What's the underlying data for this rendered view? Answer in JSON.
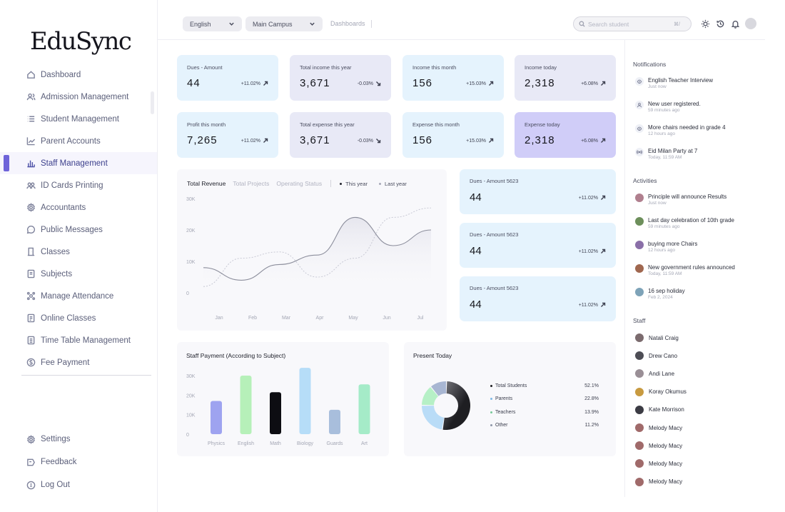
{
  "app": {
    "logo": "EduSync"
  },
  "sidebar": {
    "items": [
      {
        "label": "Dashboard",
        "icon": "home-icon"
      },
      {
        "label": "Admission Management",
        "icon": "users-icon"
      },
      {
        "label": "Student Management",
        "icon": "list-icon"
      },
      {
        "label": "Parent Accounts",
        "icon": "trend-icon"
      },
      {
        "label": "Staff Management",
        "icon": "bar-chart-icon",
        "active": true
      },
      {
        "label": "ID Cards Printing",
        "icon": "group-icon"
      },
      {
        "label": "Accountants",
        "icon": "gear-icon"
      },
      {
        "label": "Public Messages",
        "icon": "chat-icon"
      },
      {
        "label": "Classes",
        "icon": "door-icon"
      },
      {
        "label": "Subjects",
        "icon": "book-icon"
      },
      {
        "label": "Manage Attendance",
        "icon": "attendance-icon"
      },
      {
        "label": "Online Classes",
        "icon": "video-icon"
      },
      {
        "label": "Time Table Management",
        "icon": "calendar-icon"
      },
      {
        "label": "Fee Payment",
        "icon": "dollar-icon"
      }
    ],
    "bottom": [
      {
        "label": "Settings",
        "icon": "settings-icon"
      },
      {
        "label": "Feedback",
        "icon": "feedback-icon"
      },
      {
        "label": "Log Out",
        "icon": "logout-icon"
      }
    ]
  },
  "topbar": {
    "language": "English",
    "campus": "Main Campus",
    "breadcrumb": "Dashboards",
    "search_placeholder": "Search student",
    "search_shortcut": "⌘/"
  },
  "stats": [
    {
      "label": "Dues - Amount",
      "value": "44",
      "delta": "+11.02%",
      "trend": "up",
      "color": "#e5f3fd"
    },
    {
      "label": "Total income this year",
      "value": "3,671",
      "delta": "-0.03%",
      "trend": "down",
      "color": "#e8e9f6"
    },
    {
      "label": "Income this month",
      "value": "156",
      "delta": "+15.03%",
      "trend": "up",
      "color": "#e5f3fd"
    },
    {
      "label": "Income today",
      "value": "2,318",
      "delta": "+6.08%",
      "trend": "up",
      "color": "#e8e9f6"
    },
    {
      "label": "Profit this month",
      "value": "7,265",
      "delta": "+11.02%",
      "trend": "up",
      "color": "#e5f3fd"
    },
    {
      "label": "Total expense this year",
      "value": "3,671",
      "delta": "-0.03%",
      "trend": "down",
      "color": "#e8e9f6"
    },
    {
      "label": "Expense this month",
      "value": "156",
      "delta": "+15.03%",
      "trend": "up",
      "color": "#e5f3fd"
    },
    {
      "label": "Expense today",
      "value": "2,318",
      "delta": "+6.08%",
      "trend": "up",
      "color": "#d0cdf8"
    }
  ],
  "revenue": {
    "tabs": [
      "Total Revenue",
      "Total Projects",
      "Operating Status"
    ],
    "legend_this_year": "This year",
    "legend_last_year": "Last year"
  },
  "dues_cards": [
    {
      "label": "Dues - Amount 5623",
      "value": "44",
      "delta": "+11.02%"
    },
    {
      "label": "Dues - Amount 5623",
      "value": "44",
      "delta": "+11.02%"
    },
    {
      "label": "Dues - Amount 5623",
      "value": "44",
      "delta": "+11.02%"
    }
  ],
  "staff_payment": {
    "title": "Staff Payment (According to Subject)"
  },
  "present_today": {
    "title": "Present Today",
    "items": [
      {
        "label": "Total Students",
        "pct": "52.1%"
      },
      {
        "label": "Parents",
        "pct": "22.8%"
      },
      {
        "label": "Teachers",
        "pct": "13.9%"
      },
      {
        "label": "Other",
        "pct": "11.2%"
      }
    ]
  },
  "chart_data": [
    {
      "type": "line",
      "title": "Total Revenue",
      "x": [
        "Jan",
        "Feb",
        "Mar",
        "Apr",
        "May",
        "Jun",
        "Jul"
      ],
      "yticks": [
        "0",
        "10K",
        "20K",
        "30K"
      ],
      "ylim": [
        0,
        30000
      ],
      "series": [
        {
          "name": "This year",
          "values": [
            8000,
            4000,
            9000,
            12000,
            24000,
            15000,
            20000
          ]
        },
        {
          "name": "Last year",
          "values": [
            2000,
            11000,
            13000,
            5000,
            11000,
            24000,
            27000
          ]
        }
      ]
    },
    {
      "type": "bar",
      "title": "Staff Payment (According to Subject)",
      "categories": [
        "Physics",
        "English",
        "Math",
        "Biology",
        "Guards",
        "Art"
      ],
      "values": [
        17000,
        30000,
        21500,
        34000,
        12500,
        25500
      ],
      "colors": [
        "#9ea3f0",
        "#b6f0b9",
        "#0d0d12",
        "#b6ddf8",
        "#a8bedc",
        "#a5ebc8"
      ],
      "yticks": [
        "0",
        "10K",
        "20K",
        "30K"
      ],
      "ylim": [
        0,
        30000
      ]
    },
    {
      "type": "pie",
      "title": "Present Today",
      "labels": [
        "Total Students",
        "Parents",
        "Teachers",
        "Other"
      ],
      "values": [
        52.1,
        22.8,
        13.9,
        11.2
      ],
      "colors": [
        "#1e1e22",
        "#b9dcf7",
        "#b6f0c6",
        "#a8b6d2"
      ]
    }
  ],
  "notifications": {
    "title": "Notifications",
    "items": [
      {
        "text": "English Teacher Interview",
        "time": "Just now",
        "icon": "bug-icon"
      },
      {
        "text": "New user registered.",
        "time": "59 minutes ago",
        "icon": "user-icon"
      },
      {
        "text": "More chairs needed in grade 4",
        "time": "12 hours ago",
        "icon": "bug-icon"
      },
      {
        "text": "Eid Milan Party at 7",
        "time": "Today, 11:59 AM",
        "icon": "broadcast-icon"
      }
    ]
  },
  "activities": {
    "title": "Activities",
    "items": [
      {
        "text": "Principle will announce Results",
        "time": "Just now"
      },
      {
        "text": "Last day celebration of 10th grade",
        "time": "59 minutes ago"
      },
      {
        "text": "buying more Chairs",
        "time": "12 hours ago"
      },
      {
        "text": "New government rules announced",
        "time": "Today, 11:59 AM"
      },
      {
        "text": "16 sep holiday",
        "time": "Feb 2, 2024"
      }
    ]
  },
  "staff": {
    "title": "Staff",
    "items": [
      "Natali Craig",
      "Drew Cano",
      "Andi Lane",
      "Koray Okumus",
      "Kate Morrison",
      "Melody Macy",
      "Melody Macy",
      "Melody Macy",
      "Melody Macy"
    ]
  }
}
